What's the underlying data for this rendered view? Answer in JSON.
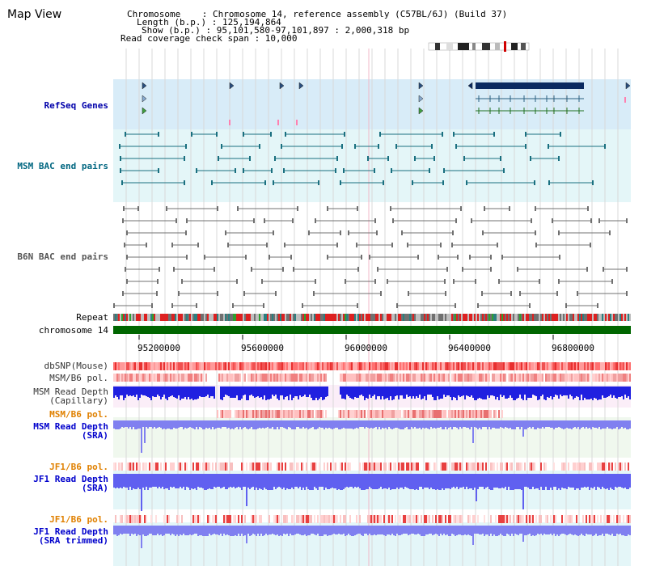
{
  "title": "Map View",
  "info": {
    "chromosome_line": "Chromosome    : Chromosome 14, reference assembly (C57BL/6J) (Build 37)",
    "length_line": "Length (b.p.) : 125,194,864",
    "show_line": "Show (b.p.) : 95,101,580-97,101,897 : 2,000,318 bp",
    "coverage_line": "Read coverage check span : 10,000"
  },
  "tracks": {
    "refseq": "RefSeq Genes",
    "msm_bac": "MSM BAC end pairs",
    "b6n_bac": "B6N BAC end pairs",
    "repeat": "Repeat",
    "chromosome": "chromosome 14",
    "dbsnp": "dbSNP(Mouse)",
    "msm_b6_pol_1": "MSM/B6 pol.",
    "msm_depth_cap": "MSM Read Depth\n(Capillary)",
    "msm_b6_pol_2": "MSM/B6 pol.",
    "msm_depth_sra": "MSM Read Depth\n(SRA)",
    "jf1_b6_pol_1": "JF1/B6 pol.",
    "jf1_depth_sra": "JF1 Read Depth\n(SRA)",
    "jf1_b6_pol_2": "JF1/B6 pol.",
    "jf1_depth_trim": "JF1 Read Depth\n(SRA trimmed)"
  },
  "axis_ticks": [
    "95200000",
    "95600000",
    "96000000",
    "96400000",
    "96800000"
  ],
  "colors": {
    "navy": "#0000aa",
    "teal": "#006680",
    "gray_label": "#555555",
    "orange": "#e08000",
    "blue_label": "#0000cc",
    "green": "#006600"
  }
}
